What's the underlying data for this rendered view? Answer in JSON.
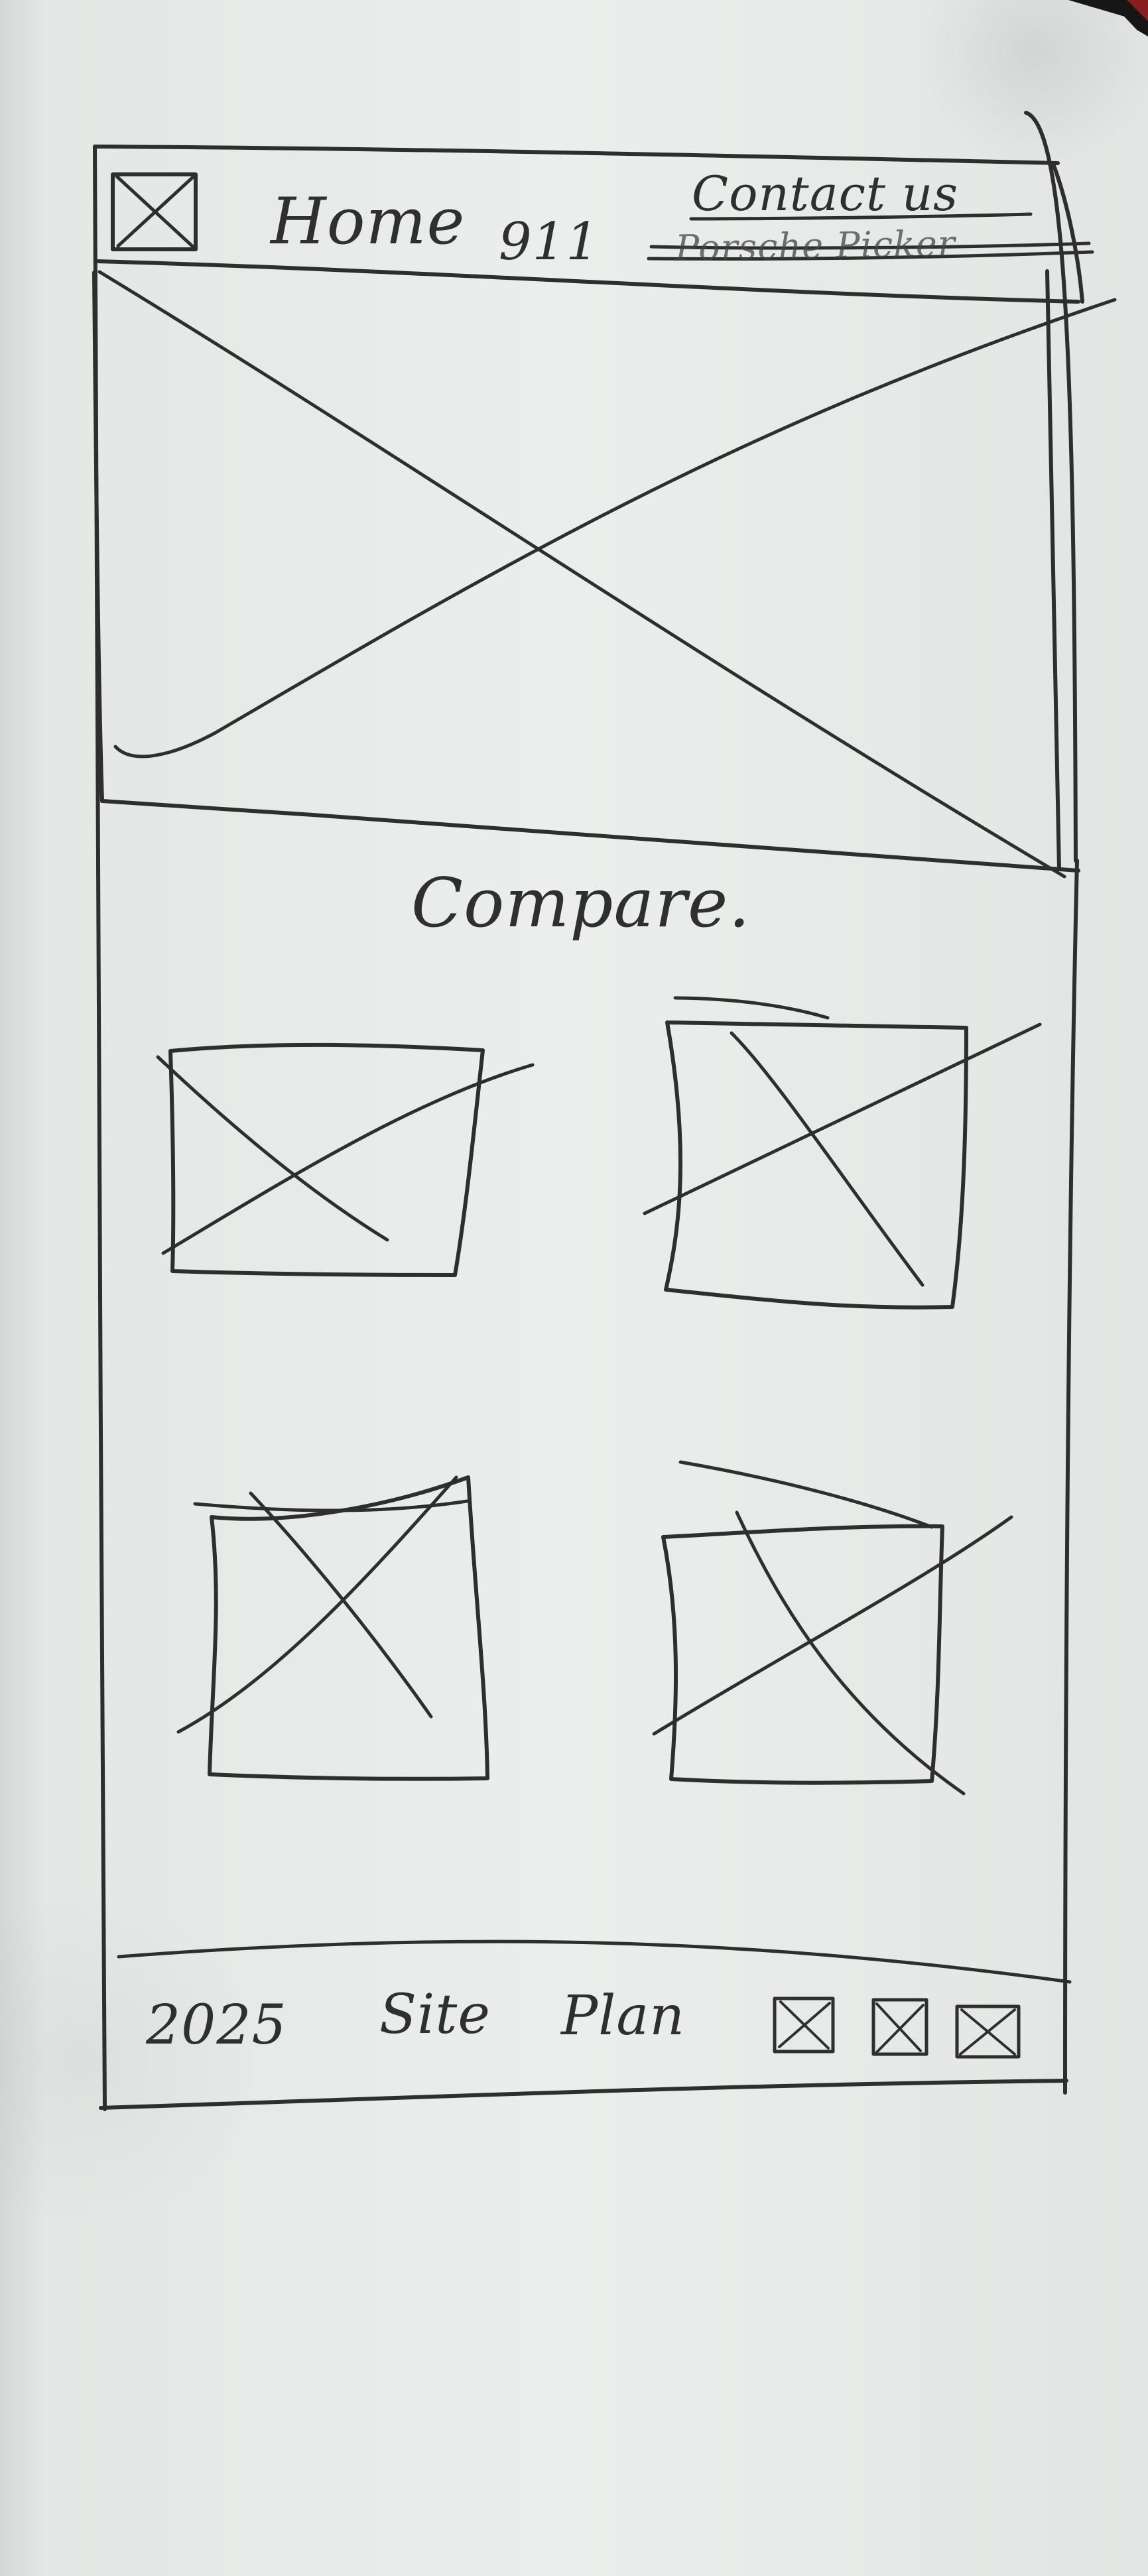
{
  "nav": {
    "home": "Home",
    "model": "911",
    "contact": "Contact us",
    "struck_out": "Porsche Picker"
  },
  "compare": {
    "heading": "Compare."
  },
  "footer": {
    "year": "2025",
    "site": "Site",
    "plan": "Plan"
  },
  "icons": {
    "logo": "placeholder-x-icon",
    "social": [
      "placeholder-x-icon",
      "placeholder-x-icon",
      "placeholder-x-icon"
    ]
  },
  "colors": {
    "ink": "#2e2e2e",
    "paper": "#eceeed",
    "background": "#d7d9d8"
  }
}
